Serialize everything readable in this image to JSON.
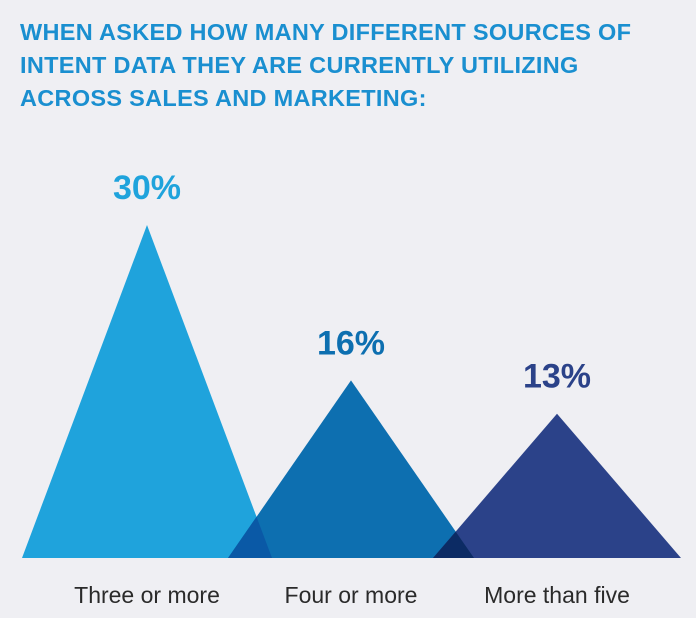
{
  "title_lines": [
    "WHEN ASKED HOW MANY DIFFERENT SOURCES OF",
    "INTENT DATA THEY ARE CURRENTLY UTILIZING",
    "ACROSS SALES AND MARKETING:"
  ],
  "chart_data": {
    "type": "bar",
    "categories": [
      "Three or more",
      "Four or more",
      "More than five"
    ],
    "values": [
      30,
      16,
      13
    ],
    "value_labels": [
      "30%",
      "16%",
      "13%"
    ],
    "colors": [
      "#1fa3dc",
      "#0d6fb0",
      "#2b4289"
    ],
    "overlap_colors": [
      "#0a59a6",
      "#0c2b64"
    ],
    "title_color": "#1a8fd0"
  }
}
